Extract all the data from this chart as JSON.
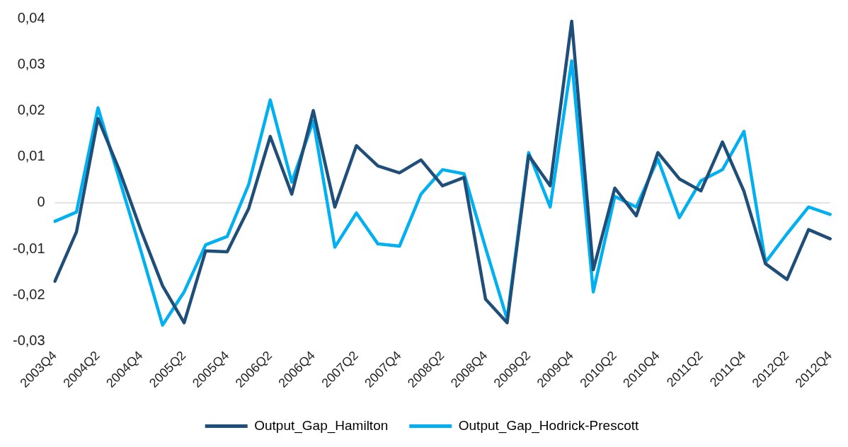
{
  "chart_data": {
    "type": "line",
    "categories": [
      "2003Q4",
      null,
      "2004Q2",
      null,
      "2004Q4",
      null,
      "2005Q2",
      null,
      "2005Q4",
      null,
      "2006Q2",
      null,
      "2006Q4",
      null,
      "2007Q2",
      null,
      "2007Q4",
      null,
      "2008Q2",
      null,
      "2008Q4",
      null,
      "2009Q2",
      null,
      "2009Q4",
      null,
      "2010Q2",
      null,
      "2010Q4",
      null,
      "2011Q2",
      null,
      "2011Q4",
      null,
      "2012Q2",
      null,
      "2012Q4"
    ],
    "series": [
      {
        "name": "Output_Gap_Hamilton",
        "color": "#1f4e79",
        "values": [
          -0.017,
          -0.0063,
          0.0183,
          0.007,
          -0.006,
          -0.018,
          -0.026,
          -0.0104,
          -0.0106,
          -0.0012,
          0.0144,
          0.0019,
          0.02,
          -0.0009,
          0.0124,
          0.008,
          0.0065,
          0.0093,
          0.0037,
          0.0055,
          -0.0209,
          -0.026,
          0.0103,
          0.0037,
          0.0394,
          -0.0145,
          0.0032,
          -0.0028,
          0.0109,
          0.0052,
          0.0026,
          0.0132,
          0.0025,
          -0.0132,
          -0.0166,
          -0.0058,
          -0.0078
        ]
      },
      {
        "name": "Output_Gap_Hodrick-Prescott",
        "color": "#00b0f0",
        "values": [
          -0.004,
          -0.002,
          0.0206,
          0.005,
          -0.0105,
          -0.0265,
          -0.0193,
          -0.0091,
          -0.0073,
          0.004,
          0.0223,
          0.0045,
          0.0178,
          -0.0096,
          -0.0022,
          -0.0089,
          -0.0094,
          0.0019,
          0.0072,
          0.0063,
          -0.0098,
          -0.0252,
          0.0109,
          -0.0009,
          0.0308,
          -0.0193,
          0.0014,
          -0.0009,
          0.0095,
          -0.0032,
          0.0048,
          0.0072,
          0.0155,
          -0.0129,
          -0.0067,
          -0.0009,
          -0.0025
        ]
      }
    ],
    "ylim": [
      -0.03,
      0.04
    ],
    "yticks": [
      {
        "value": -0.03,
        "label": "-0,03"
      },
      {
        "value": -0.02,
        "label": "-0,02"
      },
      {
        "value": -0.01,
        "label": "-0,01"
      },
      0,
      {
        "value": 0.01,
        "label": "0,01"
      },
      {
        "value": 0.02,
        "label": "0,02"
      },
      {
        "value": 0.03,
        "label": "0,03"
      },
      {
        "value": 0.04,
        "label": "0,04"
      }
    ],
    "ref_lines": [
      {
        "axis": "y",
        "value": 0,
        "color": "#d9d9d9"
      }
    ],
    "grid": false,
    "legend": "bottom",
    "marker": "none",
    "line_style": "solid"
  }
}
